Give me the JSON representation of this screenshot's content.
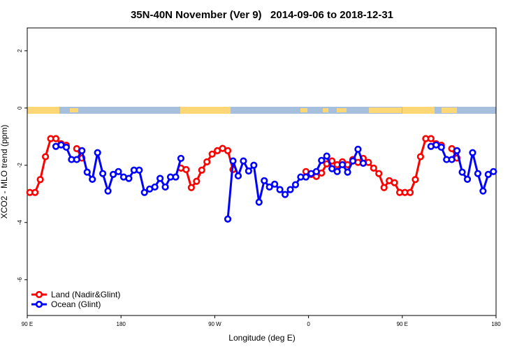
{
  "chart_data": {
    "type": "line",
    "title": "35N-40N November (Ver 9)   2014-09-06 to 2018-12-31",
    "x_label": "Longitude (deg E)",
    "y_label": "XCO2 - MLO trend (ppm)",
    "x": [
      92.5,
      97.5,
      102.5,
      107.5,
      112.5,
      117.5,
      122.5,
      127.5,
      132.5,
      137.5,
      142.5,
      147.5,
      152.5,
      157.5,
      162.5,
      167.5,
      172.5,
      177.5,
      182.5,
      187.5,
      192.5,
      197.5,
      202.5,
      207.5,
      212.5,
      217.5,
      222.5,
      227.5,
      232.5,
      237.5,
      242.5,
      247.5,
      252.5,
      257.5,
      262.5,
      267.5,
      272.5,
      277.5,
      282.5,
      287.5,
      292.5,
      297.5,
      302.5,
      307.5,
      312.5,
      317.5,
      322.5,
      327.5,
      332.5,
      337.5,
      342.5,
      347.5,
      352.5,
      357.5,
      362.5,
      367.5,
      372.5,
      377.5,
      382.5,
      387.5,
      392.5,
      397.5,
      402.5,
      407.5,
      412.5,
      417.5,
      422.5,
      427.5,
      432.5,
      437.5,
      442.5,
      447.5,
      452.5,
      457.5,
      462.5,
      467.5,
      472.5,
      477.5,
      482.5,
      487.5,
      492.5,
      497.5,
      502.5,
      507.5,
      512.5,
      517.5,
      522.5,
      527.5,
      532.5,
      537.5
    ],
    "series": [
      {
        "name": "Land (Nadir&Glint)",
        "color": "#ff0000",
        "values": [
          -2.95,
          -2.95,
          -2.5,
          -1.7,
          -1.07,
          -1.07,
          -1.25,
          -1.3,
          null,
          -1.42,
          -1.75,
          null,
          null,
          null,
          null,
          null,
          null,
          null,
          null,
          null,
          null,
          null,
          null,
          null,
          null,
          null,
          null,
          null,
          null,
          -2.1,
          -2.15,
          -2.78,
          -2.56,
          -2.17,
          -1.88,
          -1.61,
          -1.49,
          -1.41,
          -1.49,
          -2.15,
          null,
          null,
          null,
          null,
          null,
          null,
          null,
          null,
          null,
          null,
          null,
          null,
          null,
          -2.22,
          -2.32,
          -2.39,
          -2.27,
          -1.95,
          -1.85,
          -1.98,
          -1.88,
          -1.98,
          -1.8,
          -1.9,
          -1.76,
          -1.9,
          -2.1,
          -2.29,
          -2.78,
          -2.54,
          -2.61,
          -2.95,
          -2.95,
          -2.95,
          -2.5,
          -1.7,
          -1.07,
          -1.07,
          -1.25,
          -1.3,
          null,
          -1.42,
          -1.75,
          null,
          null,
          null,
          null,
          null,
          null,
          null
        ]
      },
      {
        "name": "Ocean (Glint)",
        "color": "#0000ff",
        "values": [
          null,
          null,
          null,
          null,
          null,
          -1.34,
          -1.29,
          -1.37,
          -1.8,
          -1.8,
          -1.49,
          -2.24,
          -2.49,
          -1.56,
          -2.29,
          -2.9,
          -2.32,
          -2.22,
          -2.41,
          -2.46,
          -2.17,
          -2.17,
          -2.95,
          -2.83,
          -2.76,
          -2.46,
          -2.76,
          -2.41,
          -2.41,
          -1.76,
          null,
          null,
          null,
          null,
          null,
          null,
          null,
          null,
          -3.88,
          -1.85,
          -2.37,
          -1.85,
          -2.2,
          -2.0,
          -3.29,
          -2.54,
          -2.76,
          -2.66,
          -2.85,
          -3.02,
          -2.85,
          -2.68,
          -2.41,
          -2.41,
          -2.29,
          -2.22,
          -1.83,
          -1.68,
          -2.12,
          -2.22,
          -1.98,
          -2.24,
          -1.85,
          -1.44,
          -1.93,
          null,
          null,
          null,
          null,
          null,
          null,
          null,
          null,
          null,
          null,
          null,
          null,
          -1.34,
          -1.29,
          -1.37,
          -1.8,
          -1.8,
          -1.49,
          -2.24,
          -2.49,
          -1.56,
          -2.29,
          -2.9,
          -2.32,
          -2.22
        ]
      }
    ],
    "xlim": [
      90,
      540
    ],
    "xticks": [
      {
        "value": 90,
        "label": "90 E"
      },
      180,
      {
        "value": 270,
        "label": "90 W"
      },
      {
        "value": 360,
        "label": "0"
      },
      {
        "value": 450,
        "label": "90 E"
      },
      {
        "value": 540,
        "label": "180"
      }
    ],
    "ylim": [
      -7.25,
      2.8
    ],
    "yticks": [
      2,
      0,
      -2,
      -4,
      -6
    ],
    "legend": "bottom-left"
  }
}
